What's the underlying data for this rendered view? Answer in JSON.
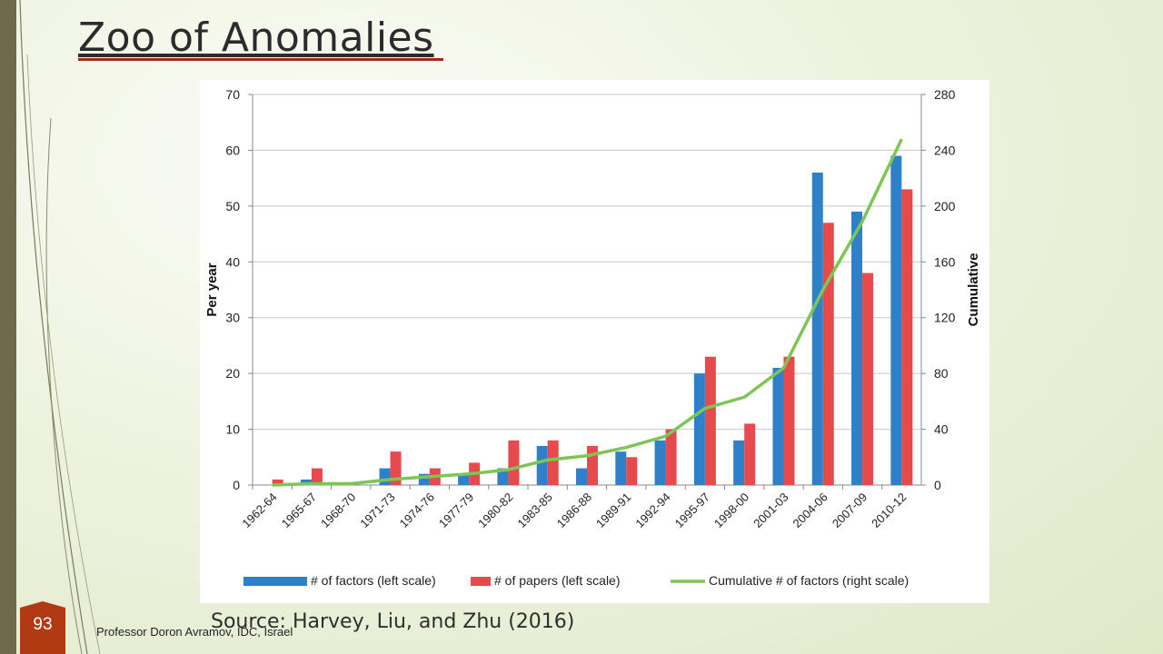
{
  "slide": {
    "title": "Zoo of Anomalies",
    "source": "Source: Harvey, Liu, and Zhu (2016)",
    "footer": "Professor Doron Avramov, IDC, Israel",
    "page_number": "93"
  },
  "colors": {
    "factors": "#2e80c8",
    "papers": "#e74a4c",
    "cumulative": "#7dc655",
    "accent": "#b13a13"
  },
  "chart_data": {
    "type": "bar",
    "categories": [
      "1962-64",
      "1965-67",
      "1968-70",
      "1971-73",
      "1974-76",
      "1977-79",
      "1980-82",
      "1983-85",
      "1986-88",
      "1989-91",
      "1992-94",
      "1995-97",
      "1998-00",
      "2001-03",
      "2004-06",
      "2007-09",
      "2010-12"
    ],
    "series": [
      {
        "name": "# of factors (left scale)",
        "type": "bar",
        "axis": "left",
        "values": [
          0,
          1,
          0,
          3,
          2,
          2,
          3,
          7,
          3,
          6,
          8,
          20,
          8,
          21,
          56,
          49,
          59
        ]
      },
      {
        "name": "# of papers (left scale)",
        "type": "bar",
        "axis": "left",
        "values": [
          1,
          3,
          0,
          6,
          3,
          4,
          8,
          8,
          7,
          5,
          10,
          23,
          11,
          23,
          47,
          38,
          53
        ]
      },
      {
        "name": "Cumulative # of factors (right scale)",
        "type": "line",
        "axis": "right",
        "values": [
          0,
          1,
          1,
          4,
          6,
          8,
          11,
          18,
          21,
          27,
          35,
          55,
          63,
          84,
          140,
          189,
          248
        ]
      }
    ],
    "ylabel": "Per year",
    "y2label": "Cumulative",
    "ylim": [
      0,
      70
    ],
    "yticks": [
      0,
      10,
      20,
      30,
      40,
      50,
      60,
      70
    ],
    "y2lim": [
      0,
      280
    ],
    "y2ticks": [
      0,
      40,
      80,
      120,
      160,
      200,
      240,
      280
    ],
    "grid": true,
    "legend": "bottom"
  }
}
